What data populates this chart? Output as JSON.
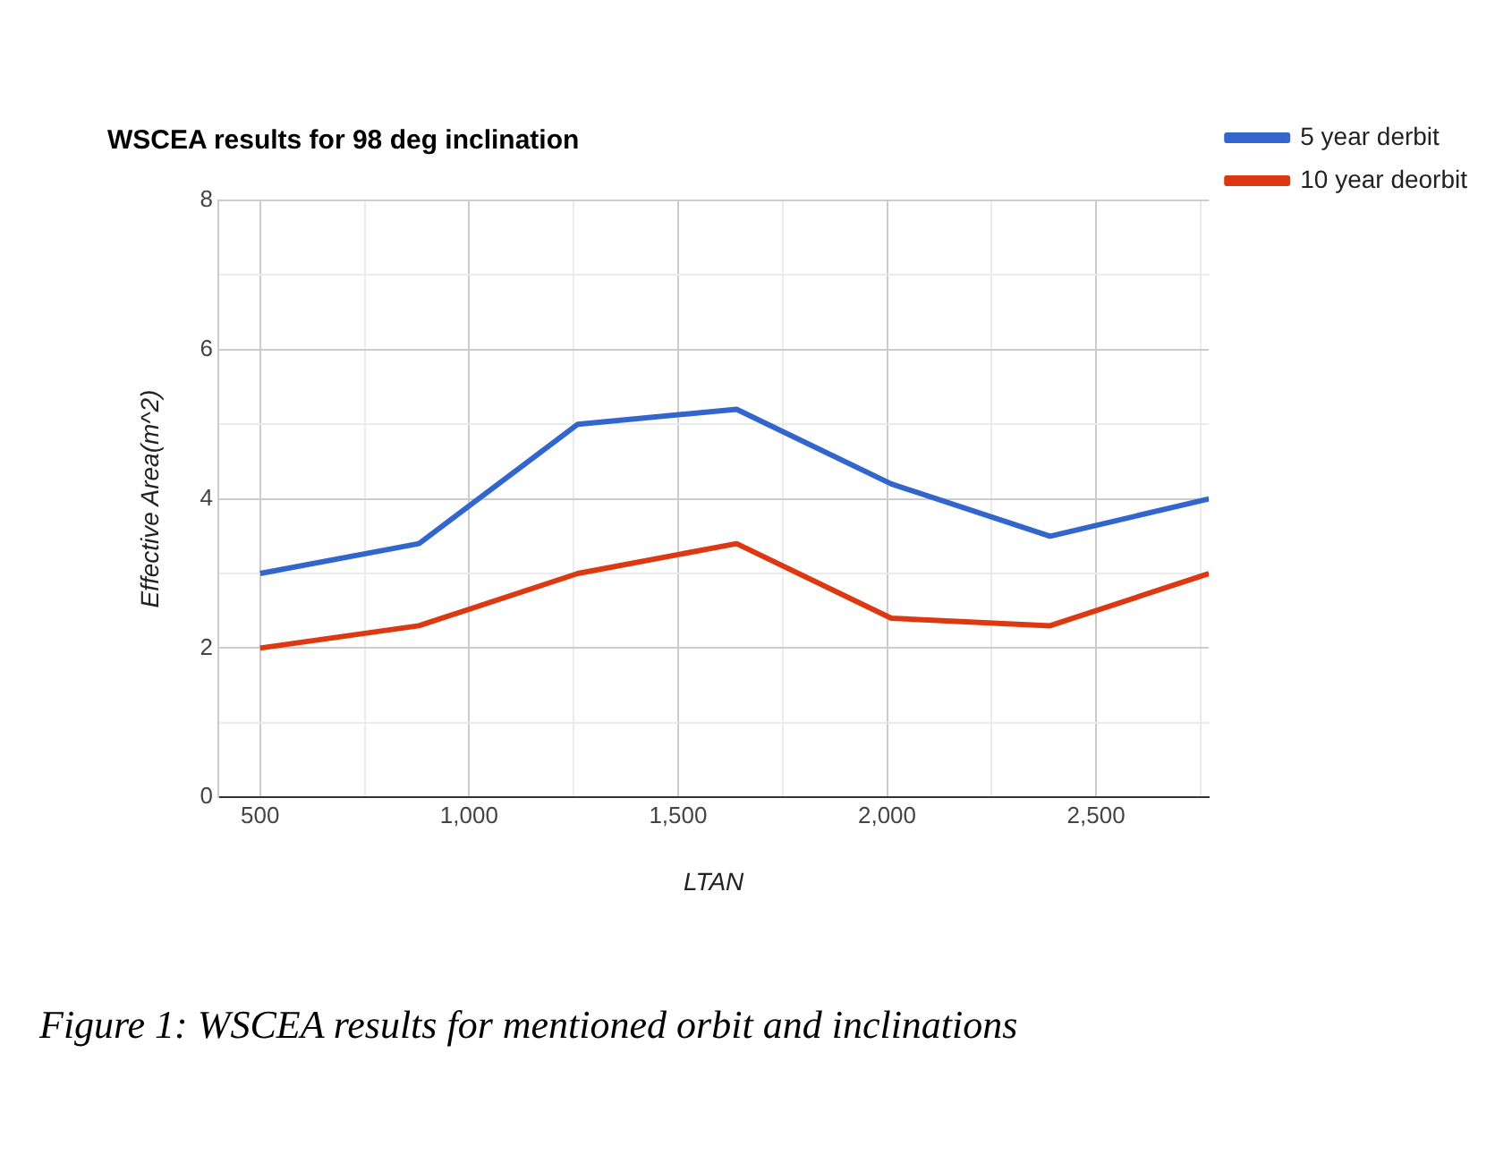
{
  "chart_data": {
    "type": "line",
    "title": "WSCEA results for 98 deg inclination",
    "xlabel": "LTAN",
    "ylabel": "Effective Area(m^2)",
    "x": [
      500,
      880,
      1260,
      1640,
      2010,
      2390,
      2770
    ],
    "series": [
      {
        "name": "5 year derbit",
        "color": "#3366cc",
        "values": [
          3.0,
          3.4,
          5.0,
          5.2,
          4.2,
          3.5,
          4.0
        ]
      },
      {
        "name": "10 year deorbit",
        "color": "#dc3912",
        "values": [
          2.0,
          2.3,
          3.0,
          3.4,
          2.4,
          2.3,
          3.0
        ]
      }
    ],
    "xlim": [
      400,
      2770
    ],
    "xticks": [
      500,
      {
        "value": 750,
        "label": null
      },
      {
        "value": 1000,
        "label": "1,000"
      },
      {
        "value": 1250,
        "label": null
      },
      {
        "value": 1500,
        "label": "1,500"
      },
      {
        "value": 1750,
        "label": null
      },
      {
        "value": 2000,
        "label": "2,000"
      },
      {
        "value": 2250,
        "label": null
      },
      {
        "value": 2500,
        "label": "2,500"
      },
      {
        "value": 2750,
        "label": null
      }
    ],
    "ylim": [
      0,
      8
    ],
    "yticks": [
      0,
      {
        "value": 1,
        "label": null
      },
      2,
      {
        "value": 3,
        "label": null
      },
      4,
      {
        "value": 5,
        "label": null
      },
      6,
      {
        "value": 7,
        "label": null
      },
      8
    ],
    "grid": true,
    "legend": "top right",
    "marker": "none",
    "line_style": "solid",
    "annotations": [
      "Figure 1: WSCEA results for mentioned orbit and inclinations"
    ]
  }
}
